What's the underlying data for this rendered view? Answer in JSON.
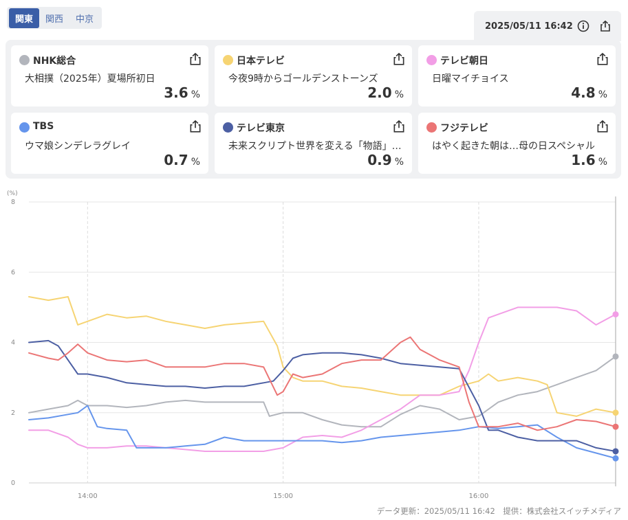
{
  "region_tabs": [
    {
      "label": "関東",
      "active": true
    },
    {
      "label": "関西",
      "active": false
    },
    {
      "label": "中京",
      "active": false
    }
  ],
  "updated_datetime": "2025/05/11 16:42",
  "icons": {
    "info": "info-icon",
    "share": "share-icon"
  },
  "channels": [
    {
      "name": "NHK総合",
      "program": "大相撲（2025年）夏場所初日",
      "rating": "3.6",
      "unit": "%",
      "color": "#b2b5bc"
    },
    {
      "name": "日本テレビ",
      "program": "今夜9時からゴールデンストーンズ",
      "rating": "2.0",
      "unit": "%",
      "color": "#f6d473"
    },
    {
      "name": "テレビ朝日",
      "program": "日曜マイチョイス",
      "rating": "4.8",
      "unit": "%",
      "color": "#f29ee6"
    },
    {
      "name": "TBS",
      "program": "ウマ娘シンデレラグレイ",
      "rating": "0.7",
      "unit": "%",
      "color": "#6595ec"
    },
    {
      "name": "テレビ東京",
      "program": "未来スクリプト世界を変える「物語」…",
      "rating": "0.9",
      "unit": "%",
      "color": "#4c5fa3"
    },
    {
      "name": "フジテレビ",
      "program": "はやく起きた朝は…母の日スペシャル",
      "rating": "1.6",
      "unit": "%",
      "color": "#eb7575"
    }
  ],
  "chart_data": {
    "type": "line",
    "ylabel": "(%)",
    "ylim": [
      0,
      8
    ],
    "yticks": [
      "0",
      "2",
      "4",
      "6",
      "8"
    ],
    "xlim": [
      13.7,
      16.7
    ],
    "xticks": [
      {
        "x": 14,
        "label": "14:00"
      },
      {
        "x": 15,
        "label": "15:00"
      },
      {
        "x": 16,
        "label": "16:00"
      }
    ],
    "current_x": 16.7,
    "series": [
      {
        "name": "NHK総合",
        "color": "#b2b5bc",
        "x": [
          13.7,
          13.8,
          13.9,
          13.95,
          14.0,
          14.1,
          14.2,
          14.3,
          14.4,
          14.5,
          14.6,
          14.7,
          14.8,
          14.9,
          14.93,
          15.0,
          15.1,
          15.2,
          15.3,
          15.4,
          15.5,
          15.6,
          15.7,
          15.8,
          15.9,
          16.0,
          16.1,
          16.2,
          16.3,
          16.4,
          16.5,
          16.6,
          16.7
        ],
        "values": [
          2.0,
          2.1,
          2.2,
          2.35,
          2.2,
          2.2,
          2.15,
          2.2,
          2.3,
          2.35,
          2.3,
          2.3,
          2.3,
          2.3,
          1.9,
          2.0,
          2.0,
          1.8,
          1.65,
          1.6,
          1.6,
          1.95,
          2.2,
          2.1,
          1.8,
          1.9,
          2.3,
          2.5,
          2.6,
          2.8,
          3.0,
          3.2,
          3.6
        ]
      },
      {
        "name": "日本テレビ",
        "color": "#f6d473",
        "x": [
          13.7,
          13.8,
          13.9,
          13.95,
          14.0,
          14.1,
          14.2,
          14.3,
          14.4,
          14.5,
          14.6,
          14.7,
          14.8,
          14.9,
          14.97,
          15.0,
          15.05,
          15.1,
          15.2,
          15.3,
          15.4,
          15.5,
          15.6,
          15.7,
          15.8,
          15.9,
          16.0,
          16.05,
          16.1,
          16.2,
          16.3,
          16.35,
          16.4,
          16.5,
          16.6,
          16.7
        ],
        "values": [
          5.3,
          5.2,
          5.3,
          4.5,
          4.6,
          4.8,
          4.7,
          4.75,
          4.6,
          4.5,
          4.4,
          4.5,
          4.55,
          4.6,
          3.9,
          3.3,
          3.0,
          2.9,
          2.9,
          2.75,
          2.7,
          2.6,
          2.5,
          2.5,
          2.5,
          2.75,
          2.9,
          3.1,
          2.9,
          3.0,
          2.9,
          2.8,
          2.0,
          1.9,
          2.1,
          2.0
        ]
      },
      {
        "name": "テレビ朝日",
        "color": "#f29ee6",
        "x": [
          13.7,
          13.8,
          13.9,
          13.95,
          14.0,
          14.1,
          14.2,
          14.3,
          14.4,
          14.5,
          14.6,
          14.7,
          14.8,
          14.9,
          15.0,
          15.1,
          15.2,
          15.3,
          15.4,
          15.5,
          15.6,
          15.7,
          15.8,
          15.9,
          15.95,
          16.0,
          16.05,
          16.1,
          16.2,
          16.3,
          16.4,
          16.5,
          16.55,
          16.6,
          16.7
        ],
        "values": [
          1.5,
          1.5,
          1.3,
          1.1,
          1.0,
          1.0,
          1.05,
          1.05,
          1.0,
          0.95,
          0.9,
          0.9,
          0.9,
          0.9,
          1.0,
          1.3,
          1.35,
          1.3,
          1.5,
          1.8,
          2.1,
          2.5,
          2.5,
          2.6,
          3.2,
          4.0,
          4.7,
          4.8,
          5.0,
          5.0,
          5.0,
          4.9,
          4.7,
          4.5,
          4.8
        ]
      },
      {
        "name": "TBS",
        "color": "#6595ec",
        "x": [
          13.7,
          13.8,
          13.9,
          13.95,
          14.0,
          14.05,
          14.1,
          14.2,
          14.25,
          14.3,
          14.4,
          14.5,
          14.6,
          14.7,
          14.8,
          14.9,
          15.0,
          15.1,
          15.2,
          15.3,
          15.4,
          15.5,
          15.6,
          15.7,
          15.8,
          15.9,
          16.0,
          16.1,
          16.2,
          16.3,
          16.4,
          16.5,
          16.6,
          16.7
        ],
        "values": [
          1.8,
          1.85,
          1.95,
          2.0,
          2.2,
          1.6,
          1.55,
          1.5,
          1.0,
          1.0,
          1.0,
          1.05,
          1.1,
          1.3,
          1.2,
          1.2,
          1.2,
          1.2,
          1.2,
          1.15,
          1.2,
          1.3,
          1.35,
          1.4,
          1.45,
          1.5,
          1.6,
          1.55,
          1.6,
          1.65,
          1.3,
          1.0,
          0.85,
          0.7
        ]
      },
      {
        "name": "テレビ東京",
        "color": "#4c5fa3",
        "x": [
          13.7,
          13.8,
          13.85,
          13.9,
          13.95,
          14.0,
          14.1,
          14.2,
          14.3,
          14.4,
          14.5,
          14.6,
          14.7,
          14.8,
          14.9,
          14.95,
          15.0,
          15.05,
          15.1,
          15.2,
          15.3,
          15.4,
          15.5,
          15.6,
          15.7,
          15.8,
          15.9,
          16.0,
          16.05,
          16.1,
          16.2,
          16.3,
          16.4,
          16.5,
          16.6,
          16.7
        ],
        "values": [
          4.0,
          4.05,
          3.9,
          3.5,
          3.1,
          3.1,
          3.0,
          2.85,
          2.8,
          2.75,
          2.75,
          2.7,
          2.75,
          2.75,
          2.85,
          2.9,
          3.2,
          3.55,
          3.65,
          3.7,
          3.7,
          3.65,
          3.55,
          3.4,
          3.35,
          3.3,
          3.25,
          2.2,
          1.5,
          1.5,
          1.3,
          1.2,
          1.2,
          1.2,
          1.0,
          0.9
        ]
      },
      {
        "name": "フジテレビ",
        "color": "#eb7575",
        "x": [
          13.7,
          13.8,
          13.85,
          13.9,
          13.95,
          14.0,
          14.1,
          14.2,
          14.3,
          14.4,
          14.5,
          14.6,
          14.7,
          14.8,
          14.9,
          14.97,
          15.0,
          15.05,
          15.1,
          15.2,
          15.3,
          15.4,
          15.5,
          15.6,
          15.65,
          15.7,
          15.8,
          15.9,
          15.95,
          16.0,
          16.1,
          16.2,
          16.3,
          16.4,
          16.5,
          16.6,
          16.7
        ],
        "values": [
          3.7,
          3.55,
          3.5,
          3.7,
          3.95,
          3.7,
          3.5,
          3.45,
          3.5,
          3.3,
          3.3,
          3.3,
          3.4,
          3.4,
          3.3,
          2.5,
          2.6,
          3.1,
          3.0,
          3.1,
          3.4,
          3.5,
          3.5,
          4.0,
          4.15,
          3.8,
          3.5,
          3.3,
          2.3,
          1.6,
          1.6,
          1.7,
          1.5,
          1.6,
          1.8,
          1.75,
          1.6
        ]
      }
    ]
  },
  "footer": "データ更新：2025/05/11 16:42　提供：株式会社スイッチメディア"
}
